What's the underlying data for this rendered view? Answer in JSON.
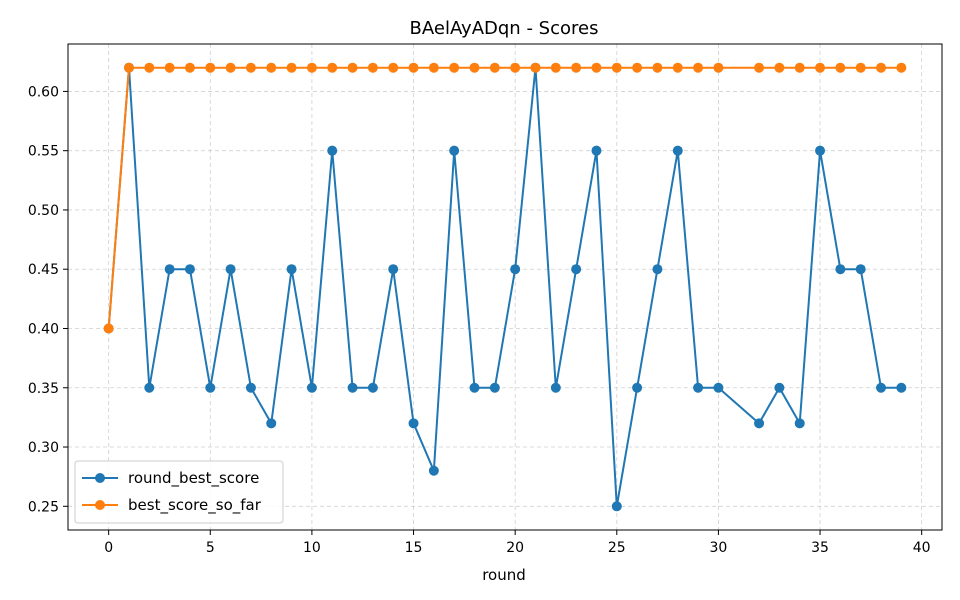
{
  "chart_data": {
    "type": "line",
    "title": "BAelAyADqn - Scores",
    "xlabel": "round",
    "ylabel": "",
    "xlim": [
      -2,
      41
    ],
    "ylim": [
      0.23,
      0.64
    ],
    "xticks": [
      0,
      5,
      10,
      15,
      20,
      25,
      30,
      35,
      40
    ],
    "yticks": [
      0.25,
      0.3,
      0.35,
      0.4,
      0.45,
      0.5,
      0.55,
      0.6
    ],
    "grid": true,
    "legend_position": "lower-left",
    "series": [
      {
        "name": "round_best_score",
        "color": "#1f77b4",
        "points": [
          [
            0,
            0.4
          ],
          [
            1,
            0.62
          ],
          [
            2,
            0.35
          ],
          [
            3,
            0.45
          ],
          [
            4,
            0.45
          ],
          [
            5,
            0.35
          ],
          [
            6,
            0.45
          ],
          [
            7,
            0.35
          ],
          [
            8,
            0.32
          ],
          [
            9,
            0.45
          ],
          [
            10,
            0.35
          ],
          [
            11,
            0.55
          ],
          [
            12,
            0.35
          ],
          [
            13,
            0.35
          ],
          [
            14,
            0.45
          ],
          [
            15,
            0.32
          ],
          [
            16,
            0.28
          ],
          [
            17,
            0.55
          ],
          [
            18,
            0.35
          ],
          [
            19,
            0.35
          ],
          [
            20,
            0.45
          ],
          [
            21,
            0.62
          ],
          [
            22,
            0.35
          ],
          [
            23,
            0.45
          ],
          [
            24,
            0.55
          ],
          [
            25,
            0.25
          ],
          [
            26,
            0.35
          ],
          [
            27,
            0.45
          ],
          [
            28,
            0.55
          ],
          [
            29,
            0.35
          ],
          [
            30,
            0.35
          ],
          [
            32,
            0.32
          ],
          [
            33,
            0.35
          ],
          [
            34,
            0.32
          ],
          [
            35,
            0.55
          ],
          [
            36,
            0.45
          ],
          [
            37,
            0.45
          ],
          [
            38,
            0.35
          ],
          [
            39,
            0.35
          ]
        ]
      },
      {
        "name": "best_score_so_far",
        "color": "#ff7f0e",
        "points": [
          [
            0,
            0.4
          ],
          [
            1,
            0.62
          ],
          [
            2,
            0.62
          ],
          [
            3,
            0.62
          ],
          [
            4,
            0.62
          ],
          [
            5,
            0.62
          ],
          [
            6,
            0.62
          ],
          [
            7,
            0.62
          ],
          [
            8,
            0.62
          ],
          [
            9,
            0.62
          ],
          [
            10,
            0.62
          ],
          [
            11,
            0.62
          ],
          [
            12,
            0.62
          ],
          [
            13,
            0.62
          ],
          [
            14,
            0.62
          ],
          [
            15,
            0.62
          ],
          [
            16,
            0.62
          ],
          [
            17,
            0.62
          ],
          [
            18,
            0.62
          ],
          [
            19,
            0.62
          ],
          [
            20,
            0.62
          ],
          [
            21,
            0.62
          ],
          [
            22,
            0.62
          ],
          [
            23,
            0.62
          ],
          [
            24,
            0.62
          ],
          [
            25,
            0.62
          ],
          [
            26,
            0.62
          ],
          [
            27,
            0.62
          ],
          [
            28,
            0.62
          ],
          [
            29,
            0.62
          ],
          [
            30,
            0.62
          ],
          [
            32,
            0.62
          ],
          [
            33,
            0.62
          ],
          [
            34,
            0.62
          ],
          [
            35,
            0.62
          ],
          [
            36,
            0.62
          ],
          [
            37,
            0.62
          ],
          [
            38,
            0.62
          ],
          [
            39,
            0.62
          ]
        ]
      }
    ]
  }
}
